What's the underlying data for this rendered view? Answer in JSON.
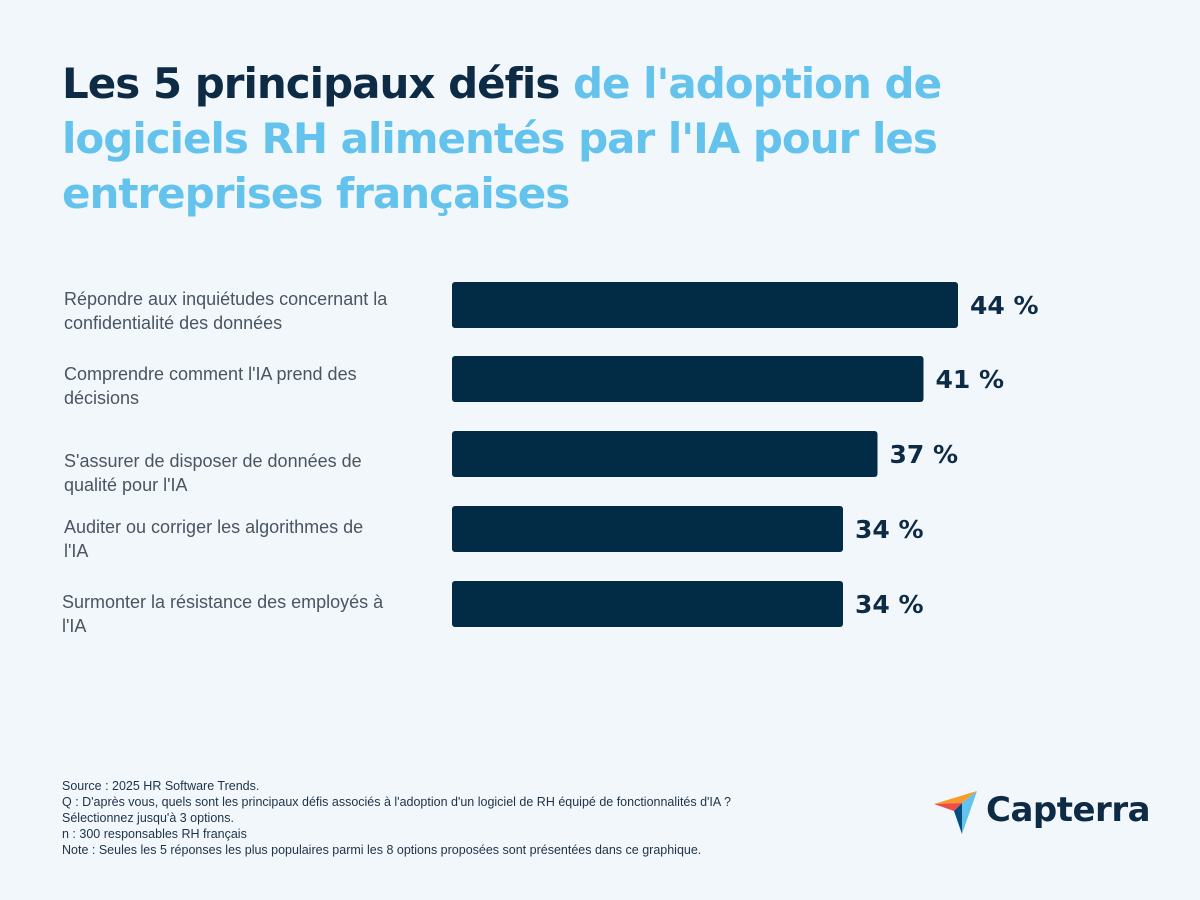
{
  "chart_data": {
    "type": "bar",
    "orientation": "horizontal",
    "title_dark": "Les 5 principaux défis",
    "title_light": "de l'adoption de logiciels RH alimentés par l'IA pour les entreprises françaises",
    "categories": [
      "Répondre aux inquiétudes concernant la confidentialité des données",
      "Comprendre comment l'IA prend des décisions",
      "S'assurer de disposer de données de qualité pour l'IA",
      "Auditer ou corriger les algorithmes de l'IA",
      "Surmonter la résistance des employés à l'IA"
    ],
    "category_lines": [
      [
        "Répondre aux inquiétudes concernant la",
        "confidentialité des données"
      ],
      [
        "Comprendre comment l'IA prend des",
        "décisions"
      ],
      [
        "S'assurer de disposer de données de",
        "qualité pour l'IA"
      ],
      [
        "Auditer ou corriger les algorithmes de",
        "l'IA"
      ],
      [
        "Surmonter la résistance des employés à",
        "l'IA"
      ]
    ],
    "values": [
      44,
      41,
      37,
      34,
      34
    ],
    "value_labels": [
      "44 %",
      "41 %",
      "37 %",
      "34 %",
      "34 %"
    ],
    "unit": "%",
    "xlim": [
      0,
      44
    ],
    "grid": false,
    "bar_color": "#022c46"
  },
  "footer": {
    "source": "Source : 2025 HR Software Trends.",
    "question": "Q : D'après vous, quels sont les principaux défis associés à l'adoption d'un logiciel  de RH équipé de fonctionnalités d'IA ?",
    "instruction": "Sélectionnez jusqu'à 3 options.",
    "sample": "n : 300 responsables RH français",
    "note": "Note : Seules les 5 réponses les plus populaires parmi les 8 options proposées sont présentées dans ce graphique."
  },
  "logo": {
    "text": "Capterra",
    "icon": "capterra-arrow-icon"
  },
  "colors": {
    "dark": "#0d2b45",
    "light": "#64c3ec",
    "background": "#f2f7fc"
  }
}
